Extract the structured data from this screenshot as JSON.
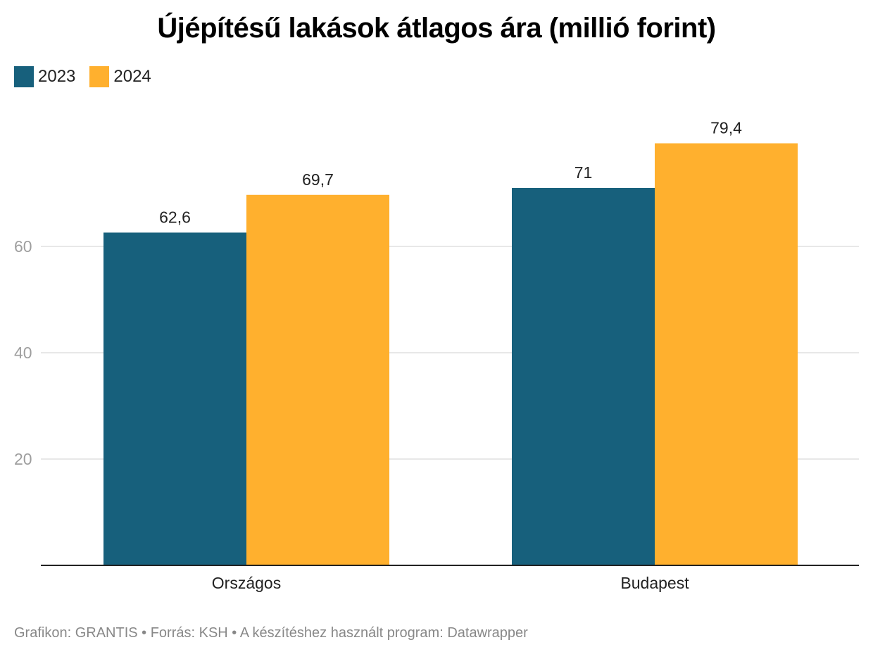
{
  "chart_data": {
    "type": "bar",
    "title": "Újépítésű lakások átlagos ára (millió forint)",
    "categories": [
      "Országos",
      "Budapest"
    ],
    "series": [
      {
        "name": "2023",
        "values": [
          62.6,
          71
        ],
        "labels": [
          "62,6",
          "71"
        ],
        "color": "#17607c"
      },
      {
        "name": "2024",
        "values": [
          69.7,
          79.4
        ],
        "labels": [
          "69,7",
          "79,4"
        ],
        "color": "#ffb02e"
      }
    ],
    "yticks": [
      20,
      40,
      60
    ],
    "ylim": [
      0,
      80
    ],
    "grid": true,
    "legend": "top-left",
    "xlabel": "",
    "ylabel": ""
  },
  "footer": {
    "text": "Grafikon: GRANTIS • Forrás: KSH • A készítéshez használt program: Datawrapper"
  }
}
